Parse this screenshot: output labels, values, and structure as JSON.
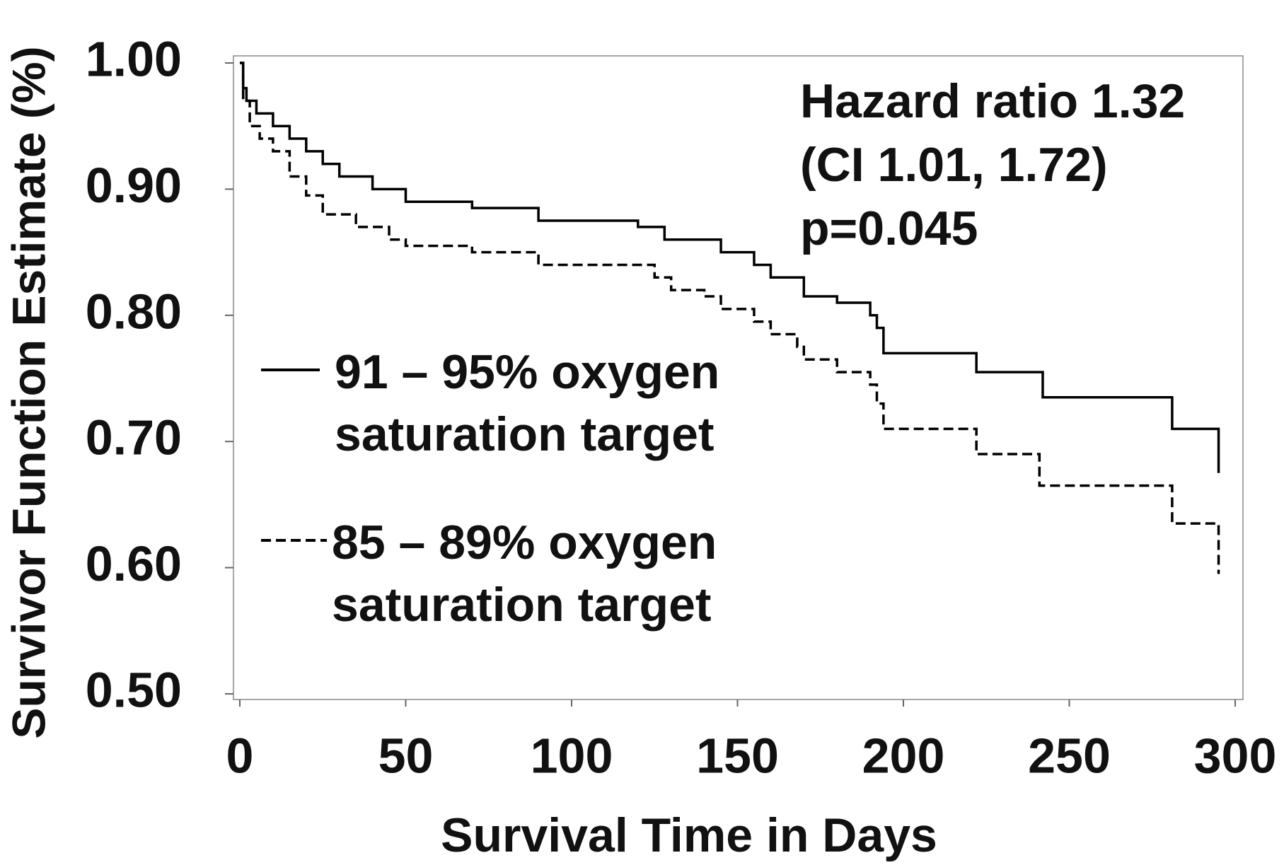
{
  "chart_data": {
    "type": "step",
    "x_label": "Survival Time in Days",
    "y_label": "Survivor Function Estimate (%)",
    "annotations": [
      "Hazard ratio 1.32",
      "(CI 1.01, 1.72)",
      "p=0.045"
    ],
    "xlim": [
      0,
      300
    ],
    "xticks": [
      0,
      50,
      100,
      150,
      200,
      250,
      300
    ],
    "ylim": [
      0.5,
      1.0
    ],
    "yticks": [
      {
        "value": 0.5,
        "label": "0.50"
      },
      {
        "value": 0.6,
        "label": "0.60"
      },
      {
        "value": 0.7,
        "label": "0.70"
      },
      {
        "value": 0.8,
        "label": "0.80"
      },
      {
        "value": 0.9,
        "label": "0.90"
      },
      {
        "value": 1.0,
        "label": "1.00"
      }
    ],
    "series": [
      {
        "name": "91 – 95% oxygen saturation target",
        "color": "#000000",
        "line_style": "solid",
        "x": [
          0,
          1,
          2,
          5,
          10,
          15,
          20,
          25,
          30,
          40,
          50,
          70,
          90,
          120,
          128,
          145,
          155,
          160,
          170,
          180,
          190,
          192,
          194,
          222,
          242,
          281,
          295
        ],
        "values": [
          1.0,
          0.98,
          0.97,
          0.96,
          0.95,
          0.94,
          0.93,
          0.92,
          0.91,
          0.9,
          0.89,
          0.885,
          0.875,
          0.87,
          0.86,
          0.85,
          0.84,
          0.83,
          0.815,
          0.81,
          0.8,
          0.79,
          0.77,
          0.755,
          0.735,
          0.71,
          0.675
        ]
      },
      {
        "name": "85 – 89% oxygen saturation target",
        "color": "#000000",
        "line_style": "dashed",
        "x": [
          0,
          1,
          3,
          6,
          10,
          15,
          20,
          25,
          35,
          45,
          50,
          70,
          90,
          125,
          130,
          140,
          145,
          155,
          160,
          168,
          170,
          180,
          190,
          192,
          194,
          222,
          241,
          281,
          295
        ],
        "values": [
          1.0,
          0.97,
          0.95,
          0.94,
          0.93,
          0.91,
          0.895,
          0.88,
          0.87,
          0.86,
          0.855,
          0.85,
          0.84,
          0.83,
          0.82,
          0.815,
          0.805,
          0.795,
          0.785,
          0.775,
          0.765,
          0.755,
          0.745,
          0.73,
          0.71,
          0.69,
          0.665,
          0.635,
          0.595
        ]
      }
    ]
  }
}
